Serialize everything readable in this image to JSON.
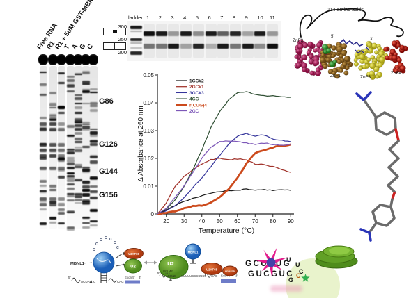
{
  "footprint_gel": {
    "lane_labels": [
      "Free RNA",
      "R1",
      "R1 + 5uM GST-MBNL1",
      "T",
      "A",
      "G",
      "C"
    ],
    "band_labels": [
      "G86",
      "G126",
      "G144",
      "G156"
    ]
  },
  "splice_gel": {
    "ladder_label": "ladder",
    "lane_numbers": [
      "1",
      "2",
      "3",
      "4",
      "5",
      "6",
      "7",
      "8",
      "9",
      "10",
      "11"
    ],
    "size_markers": [
      "300",
      "250",
      "200"
    ],
    "band_intensities": [
      {
        "upper": 0.95,
        "lower": 0.5
      },
      {
        "upper": 0.9,
        "lower": 0.5
      },
      {
        "upper": 0.35,
        "lower": 0.9
      },
      {
        "upper": 0.9,
        "lower": 0.3
      },
      {
        "upper": 0.4,
        "lower": 0.85
      },
      {
        "upper": 0.9,
        "lower": 0.25
      },
      {
        "upper": 0.6,
        "lower": 0.9
      },
      {
        "upper": 0.85,
        "lower": 0.5
      },
      {
        "upper": 0.3,
        "lower": 0.9
      },
      {
        "upper": 0.9,
        "lower": 0.4
      },
      {
        "upper": 0.35,
        "lower": 0.95
      }
    ]
  },
  "protein": {
    "caption": "114 amino acids",
    "domain_labels": [
      "ZnF2",
      "ZnF1",
      "ZnF3",
      "ZnF4"
    ],
    "rna_end_labels": [
      "5'",
      "3'"
    ],
    "domain_colors": {
      "ZnF1": "#96691f",
      "ZnF2": "#b01858",
      "ZnF3": "#e6df2e",
      "ZnF4": "#c41212"
    }
  },
  "chart_data": {
    "type": "line",
    "title": "",
    "xlabel": "Temperature (°C)",
    "ylabel": "Δ Absorbance at 260 nm",
    "xlim": [
      15,
      90
    ],
    "ylim": [
      0,
      0.05
    ],
    "xticks": [
      20,
      30,
      40,
      50,
      60,
      70,
      80,
      90
    ],
    "yticks": [
      0,
      0.01,
      0.02,
      0.03,
      0.04,
      0.05
    ],
    "grid": false,
    "legend_position": "upper-left",
    "series": [
      {
        "name": "1GC#2",
        "color": "#1a1a1a",
        "x": [
          15,
          20,
          25,
          30,
          35,
          40,
          45,
          50,
          55,
          60,
          65,
          70,
          75,
          80,
          85,
          90
        ],
        "y": [
          0,
          0.0015,
          0.003,
          0.0045,
          0.0055,
          0.0065,
          0.0075,
          0.008,
          0.0085,
          0.0085,
          0.009,
          0.0085,
          0.0088,
          0.0085,
          0.0088,
          0.0085
        ]
      },
      {
        "name": "2GC#1",
        "color": "#a03028",
        "x": [
          15,
          20,
          25,
          30,
          35,
          40,
          45,
          50,
          55,
          60,
          65,
          70,
          75,
          80,
          85,
          90
        ],
        "y": [
          0,
          0.004,
          0.01,
          0.0135,
          0.016,
          0.018,
          0.0195,
          0.02,
          0.0195,
          0.0198,
          0.0195,
          0.018,
          0.0178,
          0.017,
          0.016,
          0.015
        ]
      },
      {
        "name": "3GC#3",
        "color": "#35359b",
        "x": [
          15,
          20,
          25,
          30,
          35,
          40,
          45,
          50,
          55,
          60,
          65,
          70,
          75,
          80,
          85,
          90
        ],
        "y": [
          0,
          0.001,
          0.003,
          0.006,
          0.0095,
          0.013,
          0.017,
          0.021,
          0.025,
          0.028,
          0.029,
          0.028,
          0.0285,
          0.027,
          0.0265,
          0.026
        ]
      },
      {
        "name": "4GC",
        "color": "#2f4f33",
        "x": [
          15,
          20,
          25,
          30,
          35,
          40,
          45,
          50,
          55,
          60,
          65,
          70,
          75,
          80,
          85,
          90
        ],
        "y": [
          0,
          0.002,
          0.005,
          0.01,
          0.016,
          0.023,
          0.031,
          0.037,
          0.041,
          0.0435,
          0.044,
          0.043,
          0.0425,
          0.0425,
          0.042,
          0.042
        ]
      },
      {
        "name": "r(CUG)4",
        "color": "#cc4a1c",
        "x": [
          15,
          20,
          25,
          30,
          35,
          40,
          45,
          50,
          55,
          60,
          65,
          70,
          75,
          80,
          85,
          90
        ],
        "y": [
          0,
          0.0005,
          0.001,
          0.002,
          0.0028,
          0.003,
          0.004,
          0.006,
          0.009,
          0.013,
          0.018,
          0.022,
          0.023,
          0.024,
          0.0245,
          0.025
        ]
      },
      {
        "name": "2GC",
        "color": "#7d58b8",
        "x": [
          15,
          20,
          25,
          30,
          35,
          40,
          45,
          50,
          55,
          60,
          65,
          70,
          75,
          80,
          85,
          90
        ],
        "y": [
          0,
          0.002,
          0.006,
          0.01,
          0.015,
          0.02,
          0.024,
          0.026,
          0.0262,
          0.026,
          0.0255,
          0.025,
          0.0255,
          0.025,
          0.0248,
          0.025
        ]
      }
    ]
  },
  "cartoon": {
    "mbnl1_label": "MBNL1",
    "loop_letters": [
      "C",
      "C",
      "C",
      "C",
      "C",
      "C",
      "C"
    ],
    "u2af65": "U2AF65",
    "u2af35": "U2AF35",
    "u2": "U2",
    "mbnl1": "MBNL1",
    "five_prime": "5'",
    "three_prime": "3'",
    "branch_seq": "ACUA",
    "branch_a": "A",
    "branch_c": "C",
    "cag": "CAG",
    "exon_label": "Exon 5'",
    "u2_pair_seq": "UGUAG",
    "py_tract": "UUUUUCCCCUCC",
    "exon_color": "#6e7cc8"
  },
  "hairpin": {
    "top_strand": "GCUCUG",
    "bottom_strand": "GUCGUC",
    "loop_letters": [
      "U",
      "U",
      "C"
    ],
    "closing_letters": [
      "G",
      "C"
    ],
    "star_color": "#e41a8c",
    "star_core_color": "#4542a8",
    "fluor_star_color": "#2fae4e"
  }
}
